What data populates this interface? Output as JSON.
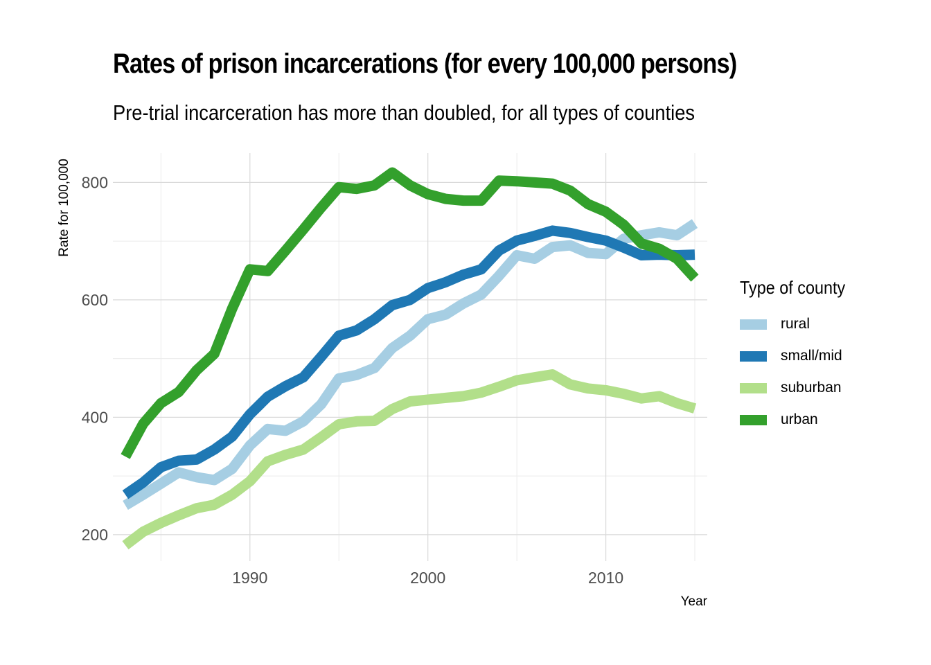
{
  "chart_data": {
    "type": "line",
    "title": "Rates of prison incarcerations (for every 100,000 persons)",
    "subtitle": "Pre-trial incarceration has more than doubled, for all types of counties",
    "xlabel": "Year",
    "ylabel": "Rate for 100,000",
    "xlim": [
      1982.3,
      2015.7
    ],
    "ylim": [
      155,
      850
    ],
    "x_ticks": [
      1990,
      2000,
      2010
    ],
    "x_minor_ticks": [
      1985,
      1995,
      2005,
      2015
    ],
    "y_ticks": [
      200,
      400,
      600,
      800
    ],
    "y_minor_ticks": [
      300,
      500,
      700
    ],
    "grid": true,
    "legend_title": "Type of county",
    "legend_position": "right",
    "x": [
      1983,
      1984,
      1985,
      1986,
      1987,
      1988,
      1989,
      1990,
      1991,
      1992,
      1993,
      1994,
      1995,
      1996,
      1997,
      1998,
      1999,
      2000,
      2001,
      2002,
      2003,
      2004,
      2005,
      2006,
      2007,
      2008,
      2009,
      2010,
      2011,
      2012,
      2013,
      2014,
      2015
    ],
    "series": [
      {
        "name": "rural",
        "color": "#a6cee3",
        "values": [
          250,
          268,
          287,
          306,
          298,
          293,
          312,
          352,
          380,
          377,
          393,
          422,
          466,
          472,
          484,
          518,
          539,
          567,
          575,
          594,
          609,
          641,
          676,
          670,
          690,
          693,
          680,
          678,
          704,
          710,
          715,
          710,
          730
        ]
      },
      {
        "name": "small/mid",
        "color": "#1f78b4",
        "values": [
          268,
          289,
          315,
          326,
          328,
          345,
          367,
          405,
          435,
          453,
          468,
          503,
          539,
          548,
          567,
          591,
          600,
          620,
          630,
          643,
          652,
          684,
          701,
          709,
          718,
          714,
          707,
          701,
          689,
          676,
          677,
          676,
          677
        ]
      },
      {
        "name": "suburban",
        "color": "#b2df8a",
        "values": [
          182,
          205,
          220,
          233,
          245,
          251,
          268,
          291,
          325,
          336,
          345,
          366,
          388,
          393,
          394,
          414,
          427,
          430,
          433,
          436,
          442,
          452,
          463,
          468,
          473,
          456,
          449,
          446,
          440,
          432,
          436,
          424,
          415
        ]
      },
      {
        "name": "urban",
        "color": "#33a02c",
        "values": [
          333,
          389,
          424,
          443,
          480,
          508,
          585,
          652,
          649,
          684,
          720,
          757,
          792,
          789,
          795,
          817,
          795,
          780,
          772,
          769,
          769,
          803,
          802,
          800,
          798,
          786,
          763,
          750,
          728,
          696,
          687,
          670,
          637
        ]
      }
    ]
  }
}
